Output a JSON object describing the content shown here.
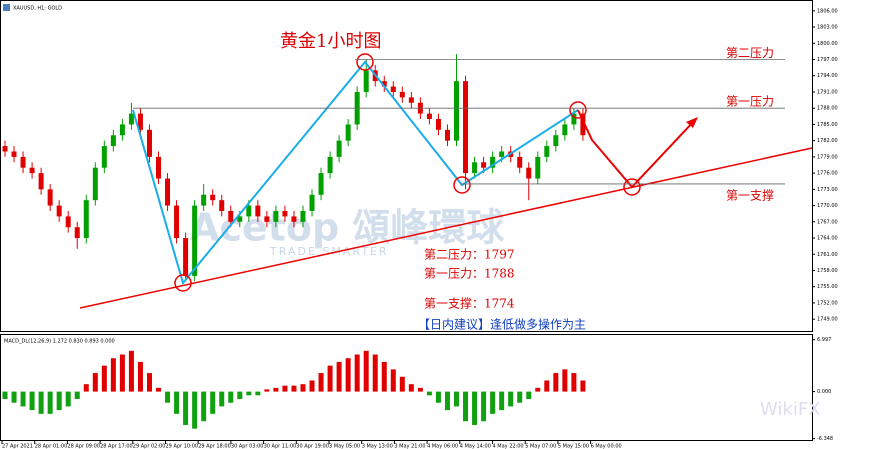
{
  "chart_data": {
    "type": "candlestick",
    "symbol": "XAUUSD, H1: GOLD",
    "title": "黄金1小时图",
    "levels": [
      {
        "label": "第二压力",
        "value": 1797
      },
      {
        "label": "第一压力",
        "value": 1788
      },
      {
        "label": "第一支撑",
        "value": 1774
      }
    ],
    "notes": [
      "第二压力：1797",
      "第一压力：1788",
      "第一支撑：1774"
    ],
    "advice": "【日内建议】逢低做多操作为主",
    "watermark": "Acetop 頌峰環球",
    "watermark_sub": "TRADE SMARTER",
    "brand": "WikiFX",
    "categories": [
      "27 Apr 2021",
      "28 Apr 01:00",
      "28 Apr 09:00",
      "28 Apr 17:00",
      "29 Apr 02:00",
      "29 Apr 10:00",
      "29 Apr 18:00",
      "30 Apr 03:00",
      "30 Apr 11:00",
      "30 Apr 19:00",
      "3 May 05:00",
      "3 May 13:00",
      "3 May 21:00",
      "4 May 06:00",
      "4 May 14:00",
      "4 May 22:00",
      "5 May 07:00",
      "5 May 15:00",
      "6 May 00:00"
    ],
    "ohlc": [
      [
        1781,
        1782,
        1779,
        1780
      ],
      [
        1780,
        1781,
        1778,
        1779
      ],
      [
        1779,
        1780,
        1776,
        1777
      ],
      [
        1777,
        1778,
        1775,
        1776
      ],
      [
        1776,
        1777,
        1772,
        1773
      ],
      [
        1773,
        1774,
        1769,
        1770
      ],
      [
        1770,
        1771,
        1767,
        1768
      ],
      [
        1768,
        1769,
        1765,
        1766
      ],
      [
        1766,
        1767,
        1762,
        1764
      ],
      [
        1764,
        1772,
        1763,
        1771
      ],
      [
        1771,
        1778,
        1770,
        1777
      ],
      [
        1777,
        1782,
        1776,
        1781
      ],
      [
        1781,
        1784,
        1780,
        1783
      ],
      [
        1783,
        1786,
        1782,
        1785
      ],
      [
        1785,
        1789,
        1784,
        1787
      ],
      [
        1787,
        1788,
        1783,
        1784
      ],
      [
        1784,
        1785,
        1778,
        1779
      ],
      [
        1779,
        1780,
        1774,
        1775
      ],
      [
        1775,
        1776,
        1769,
        1770
      ],
      [
        1770,
        1771,
        1763,
        1764
      ],
      [
        1764,
        1765,
        1756,
        1757
      ],
      [
        1757,
        1771,
        1756,
        1770
      ],
      [
        1770,
        1774,
        1769,
        1772
      ],
      [
        1772,
        1773,
        1770,
        1771
      ],
      [
        1771,
        1772,
        1768,
        1769
      ],
      [
        1769,
        1770,
        1766,
        1767
      ],
      [
        1767,
        1769,
        1766,
        1768
      ],
      [
        1768,
        1771,
        1767,
        1770
      ],
      [
        1770,
        1771,
        1767,
        1768
      ],
      [
        1768,
        1769,
        1766,
        1767
      ],
      [
        1767,
        1770,
        1766,
        1769
      ],
      [
        1769,
        1770,
        1767,
        1768
      ],
      [
        1768,
        1769,
        1766,
        1767
      ],
      [
        1767,
        1770,
        1766,
        1769
      ],
      [
        1769,
        1773,
        1768,
        1772
      ],
      [
        1772,
        1777,
        1771,
        1776
      ],
      [
        1776,
        1780,
        1775,
        1779
      ],
      [
        1779,
        1783,
        1778,
        1782
      ],
      [
        1782,
        1786,
        1781,
        1785
      ],
      [
        1785,
        1792,
        1784,
        1791
      ],
      [
        1791,
        1797,
        1790,
        1795
      ],
      [
        1795,
        1796,
        1792,
        1793
      ],
      [
        1793,
        1794,
        1791,
        1792
      ],
      [
        1792,
        1793,
        1790,
        1791
      ],
      [
        1791,
        1792,
        1789,
        1790
      ],
      [
        1790,
        1791,
        1788,
        1789
      ],
      [
        1789,
        1790,
        1786,
        1787
      ],
      [
        1787,
        1788,
        1785,
        1786
      ],
      [
        1786,
        1787,
        1783,
        1784
      ],
      [
        1784,
        1785,
        1781,
        1782
      ],
      [
        1782,
        1798,
        1781,
        1793
      ],
      [
        1793,
        1794,
        1773,
        1776
      ],
      [
        1776,
        1779,
        1775,
        1778
      ],
      [
        1778,
        1779,
        1776,
        1777
      ],
      [
        1777,
        1780,
        1776,
        1779
      ],
      [
        1779,
        1781,
        1778,
        1780
      ],
      [
        1780,
        1781,
        1778,
        1779
      ],
      [
        1779,
        1780,
        1776,
        1777
      ],
      [
        1777,
        1778,
        1771,
        1775
      ],
      [
        1775,
        1780,
        1774,
        1779
      ],
      [
        1779,
        1782,
        1778,
        1781
      ],
      [
        1781,
        1784,
        1780,
        1783
      ],
      [
        1783,
        1786,
        1782,
        1785
      ],
      [
        1785,
        1788,
        1784,
        1787
      ],
      [
        1787,
        1788,
        1782,
        1783
      ]
    ],
    "up_color": "#00a000",
    "down_color": "#e00000",
    "ylim": [
      1747,
      1808
    ],
    "yticks": [
      {
        "value": 1806,
        "label": "1806.00"
      },
      {
        "value": 1803,
        "label": "1803.00"
      },
      {
        "value": 1800,
        "label": "1800.00"
      },
      {
        "value": 1797,
        "label": "1797.00"
      },
      {
        "value": 1794,
        "label": "1794.00"
      },
      {
        "value": 1791,
        "label": "1791.00"
      },
      {
        "value": 1788,
        "label": "1788.00"
      },
      {
        "value": 1785,
        "label": "1785.00"
      },
      {
        "value": 1782,
        "label": "1782.00"
      },
      {
        "value": 1779,
        "label": "1779.00"
      },
      {
        "value": 1776,
        "label": "1776.00"
      },
      {
        "value": 1773,
        "label": "1773.00"
      },
      {
        "value": 1770,
        "label": "1770.00"
      },
      {
        "value": 1767,
        "label": "1767.00"
      },
      {
        "value": 1764,
        "label": "1764.00"
      },
      {
        "value": 1761,
        "label": "1761.00"
      },
      {
        "value": 1758,
        "label": "1758.00"
      },
      {
        "value": 1755,
        "label": "1755.00"
      },
      {
        "value": 1752,
        "label": "1752.00"
      },
      {
        "value": 1749,
        "label": "1749.00"
      }
    ],
    "macd_label": "MACD_DL(12,26,9) 1.272 0.830 0.893 0.000",
    "macd_hist": [
      -1,
      -1.5,
      -2,
      -2.5,
      -3,
      -3,
      -2.5,
      -2,
      -1,
      1,
      2.5,
      3.5,
      4.5,
      5,
      5.5,
      4,
      2.5,
      0.5,
      -1.5,
      -3,
      -4.5,
      -5,
      -4,
      -3,
      -2,
      -1.5,
      -1,
      -0.5,
      -0.5,
      0.3,
      0.5,
      0.8,
      0.8,
      1,
      1.5,
      2.5,
      3.5,
      4,
      4.5,
      5,
      5.5,
      5,
      4,
      3,
      2,
      1,
      0.5,
      -0.5,
      -1.5,
      -2.5,
      -2,
      -4,
      -4.5,
      -4,
      -3,
      -2.5,
      -2,
      -1.5,
      -1,
      0.5,
      1.5,
      2.5,
      3,
      2.5,
      1.5
    ],
    "hist_pos_color": "#e00000",
    "hist_neg_color": "#10a010",
    "y2lim": [
      -6.8,
      7.5
    ],
    "y2ticks": [
      {
        "value": 6.997,
        "label": "6.997"
      },
      {
        "value": 0,
        "label": "0.000"
      },
      {
        "value": -6.348,
        "label": "-6.348"
      }
    ]
  }
}
